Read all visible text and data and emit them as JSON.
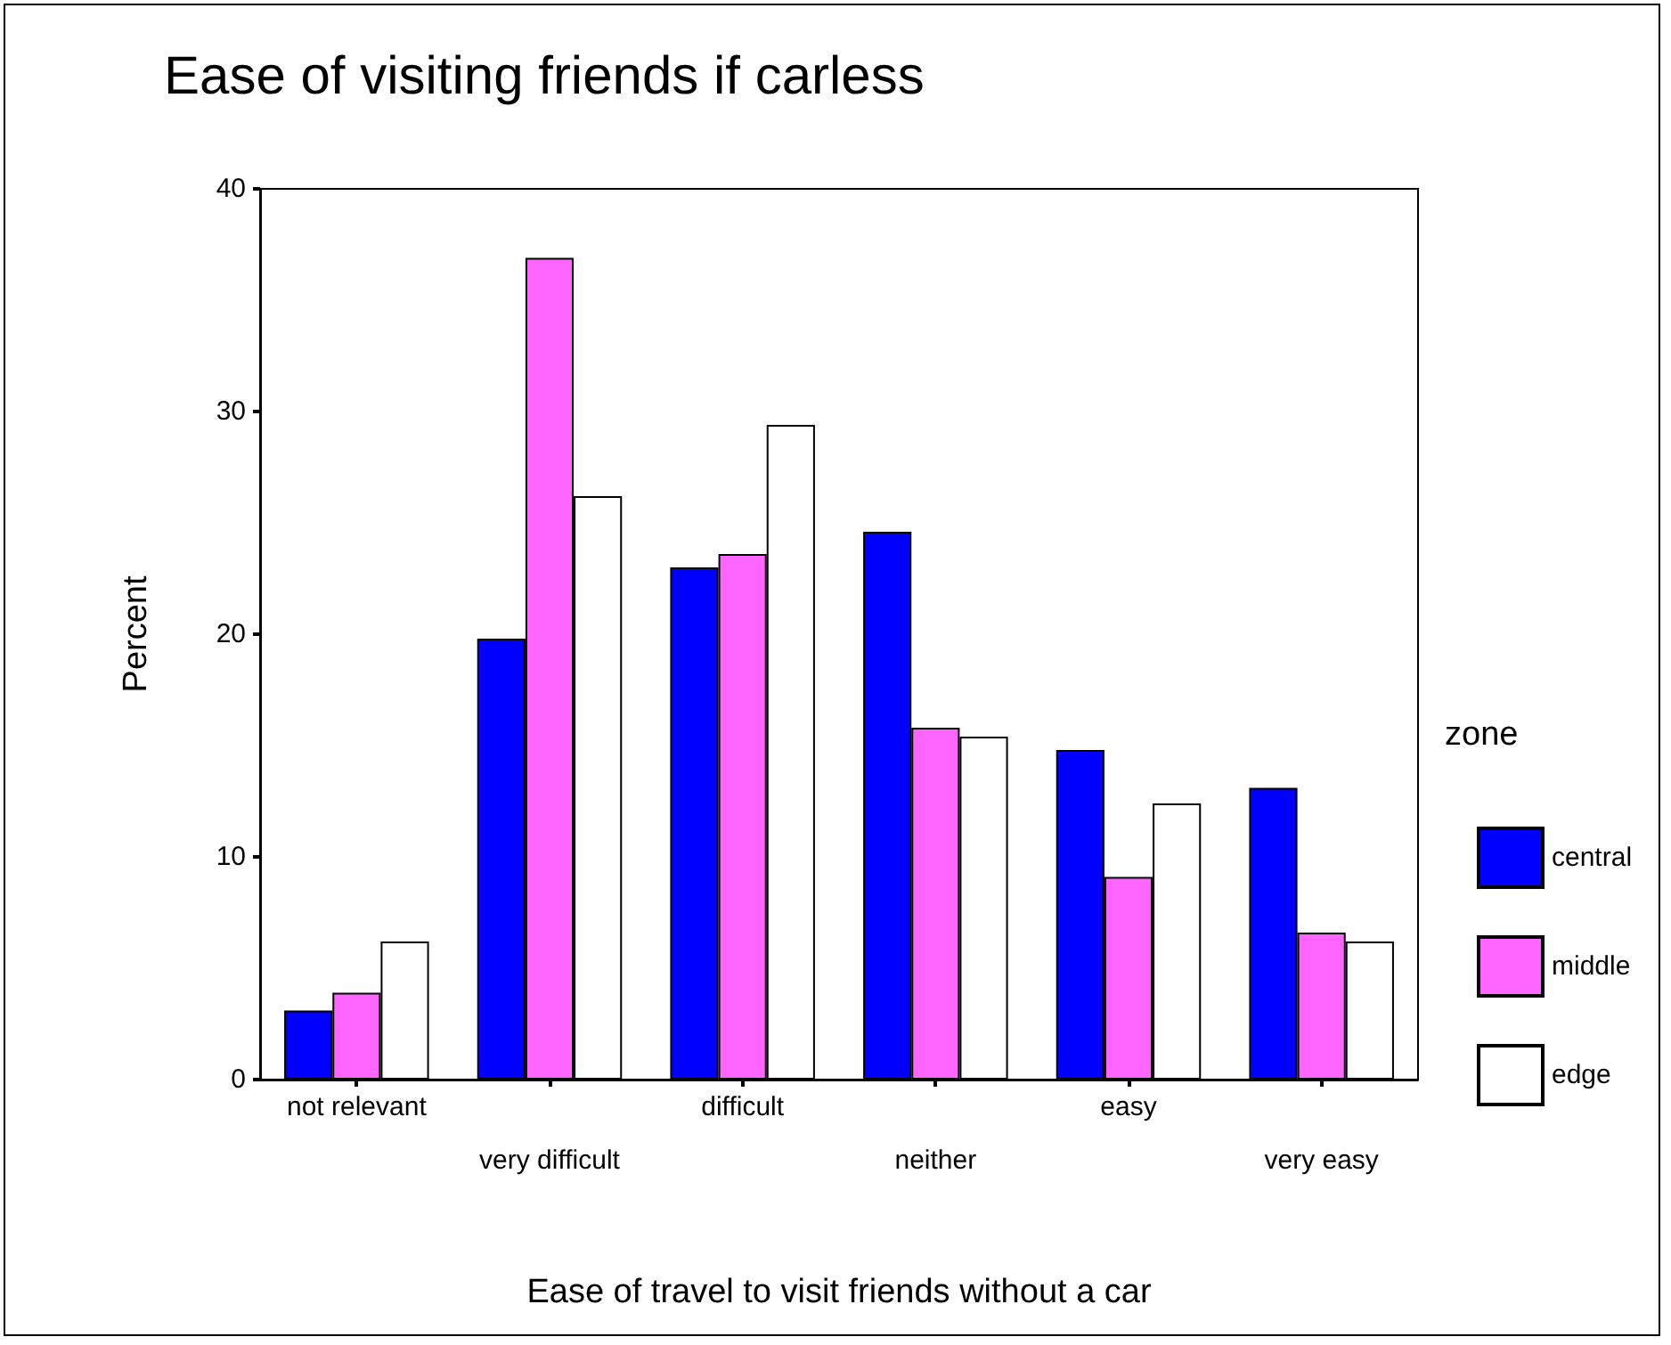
{
  "chart_data": {
    "type": "bar",
    "title": "Ease of visiting friends if carless",
    "xlabel": "Ease of travel to visit friends without a car",
    "ylabel": "Percent",
    "legend_title": "zone",
    "categories": [
      "not relevant",
      "very difficult",
      "difficult",
      "neither",
      "easy",
      "very easy"
    ],
    "series": [
      {
        "name": "central",
        "color": "#0000ff",
        "values": [
          3.1,
          19.8,
          23.0,
          24.6,
          14.8,
          13.1
        ]
      },
      {
        "name": "middle",
        "color": "#ff66ff",
        "values": [
          3.9,
          36.9,
          23.6,
          15.8,
          9.1,
          6.6
        ]
      },
      {
        "name": "edge",
        "color": "#ffffff",
        "values": [
          6.2,
          26.2,
          29.4,
          15.4,
          12.4,
          6.2
        ]
      }
    ],
    "ylim": [
      0,
      40
    ],
    "yticks": [
      0,
      10,
      20,
      30,
      40
    ],
    "grid": false,
    "legend": "right"
  }
}
